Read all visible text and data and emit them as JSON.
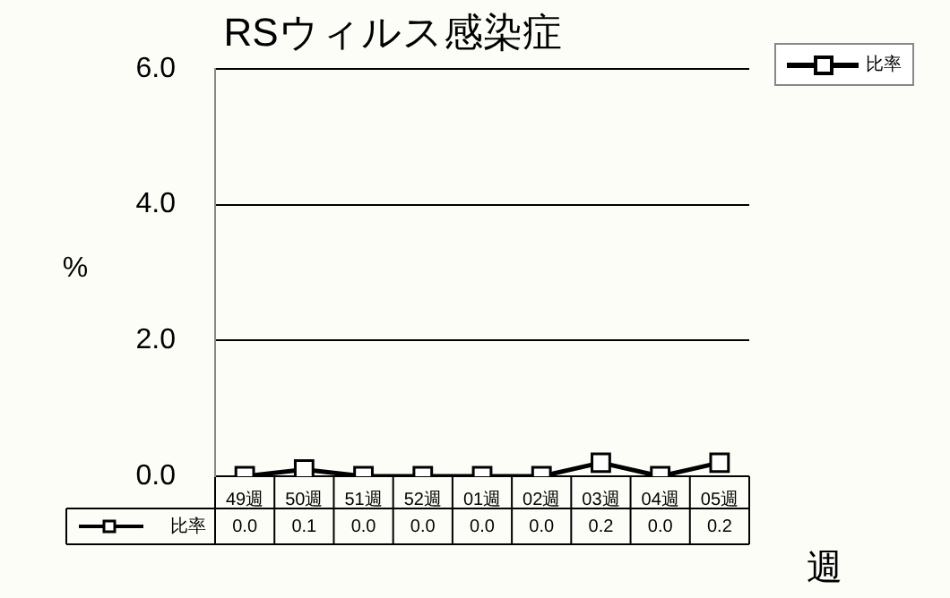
{
  "chart_data": {
    "type": "line",
    "title": "RSウィルス感染症",
    "xlabel": "週",
    "ylabel": "%",
    "categories": [
      "49週",
      "50週",
      "51週",
      "52週",
      "01週",
      "02週",
      "03週",
      "04週",
      "05週"
    ],
    "series": [
      {
        "name": "比率",
        "color": "#000000",
        "values": [
          0.0,
          0.1,
          0.0,
          0.0,
          0.0,
          0.0,
          0.2,
          0.0,
          0.2
        ],
        "value_labels": [
          "0.0",
          "0.1",
          "0.0",
          "0.0",
          "0.0",
          "0.0",
          "0.2",
          "0.0",
          "0.2"
        ]
      }
    ],
    "ylim": [
      0,
      6
    ],
    "yticks": [
      {
        "value": 0,
        "label": "0.0"
      },
      {
        "value": 2,
        "label": "2.0"
      },
      {
        "value": 4,
        "label": "4.0"
      },
      {
        "value": 6,
        "label": "6.0"
      }
    ],
    "grid": "y",
    "legend": "bottom left",
    "marker": "square",
    "line_style": "solid",
    "data_labels": true
  }
}
